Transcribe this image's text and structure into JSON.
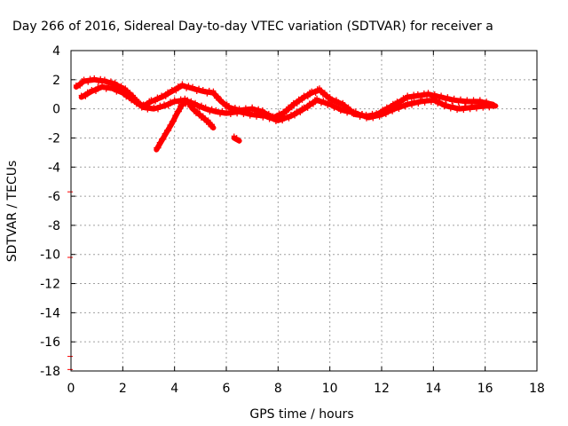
{
  "chart_data": {
    "type": "scatter",
    "title": "Day 266 of 2016, Sidereal Day-to-day VTEC variation (SDTVAR) for receiver a",
    "xlabel": "GPS time / hours",
    "ylabel": "SDTVAR / TECUs",
    "xlim": [
      0,
      18
    ],
    "ylim": [
      -18,
      4
    ],
    "xticks": [
      "0",
      "2",
      "4",
      "6",
      "8",
      "10",
      "12",
      "14",
      "16",
      "18"
    ],
    "yticks": [
      "4",
      "2",
      "0",
      "-2",
      "-4",
      "-6",
      "-8",
      "-10",
      "-12",
      "-14",
      "-16",
      "-18"
    ],
    "grid": true,
    "color": "#ff0000",
    "series": [
      {
        "x": [
          0.2,
          0.5,
          0.9,
          1.3,
          1.7,
          2.1,
          2.4,
          2.6,
          2.8,
          3.1,
          3.5,
          3.9,
          4.3,
          4.7,
          5.1,
          5.5,
          5.8,
          6.1,
          6.5,
          7.0,
          7.4,
          7.8,
          8.2,
          8.6,
          9.0,
          9.3,
          9.6,
          10.0,
          10.5,
          11.0,
          11.4,
          11.8,
          12.2,
          12.6,
          13.0,
          13.4,
          13.8,
          14.3,
          14.8,
          15.3,
          15.8,
          16.3
        ],
        "y": [
          1.5,
          1.9,
          2.0,
          1.9,
          1.7,
          1.3,
          0.8,
          0.4,
          0.2,
          0.5,
          0.8,
          1.2,
          1.6,
          1.4,
          1.2,
          1.1,
          0.5,
          0.1,
          -0.1,
          0.0,
          -0.2,
          -0.6,
          -0.3,
          0.3,
          0.8,
          1.1,
          1.3,
          0.7,
          0.3,
          -0.4,
          -0.5,
          -0.4,
          0.0,
          0.4,
          0.8,
          0.9,
          1.0,
          0.8,
          0.6,
          0.5,
          0.5,
          0.3
        ]
      },
      {
        "x": [
          0.4,
          0.8,
          1.2,
          1.6,
          2.0,
          2.4,
          2.8,
          3.2,
          3.6,
          4.0,
          4.4,
          4.8,
          5.2,
          5.6,
          6.0,
          6.5,
          7.0,
          7.5,
          8.0,
          8.5,
          9.0,
          9.5,
          10.0,
          10.5,
          11.0,
          11.5,
          12.0,
          12.5,
          13.0,
          13.5,
          14.0,
          14.5,
          15.0,
          15.5,
          16.0,
          16.4
        ],
        "y": [
          0.8,
          1.2,
          1.5,
          1.4,
          1.1,
          0.6,
          0.1,
          0.0,
          0.2,
          0.5,
          0.6,
          0.3,
          0.0,
          -0.2,
          -0.3,
          -0.2,
          -0.4,
          -0.5,
          -0.8,
          -0.5,
          0.0,
          0.6,
          0.3,
          -0.1,
          -0.3,
          -0.6,
          -0.4,
          0.0,
          0.3,
          0.5,
          0.6,
          0.2,
          0.0,
          0.1,
          0.2,
          0.2
        ]
      },
      {
        "x": [
          3.3,
          3.5,
          3.7,
          3.9,
          4.1,
          4.3,
          4.5,
          4.7,
          4.9,
          5.1,
          5.3,
          5.5
        ],
        "y": [
          -2.8,
          -2.2,
          -1.6,
          -1.0,
          -0.3,
          0.3,
          0.5,
          0.0,
          -0.3,
          -0.6,
          -0.9,
          -1.3
        ]
      },
      {
        "x": [
          6.3,
          6.4,
          6.5
        ],
        "y": [
          -2.0,
          -2.1,
          -2.2
        ]
      }
    ],
    "left_axis_markers": [
      -5.7,
      -10.2,
      -17.0,
      -17.9
    ]
  }
}
